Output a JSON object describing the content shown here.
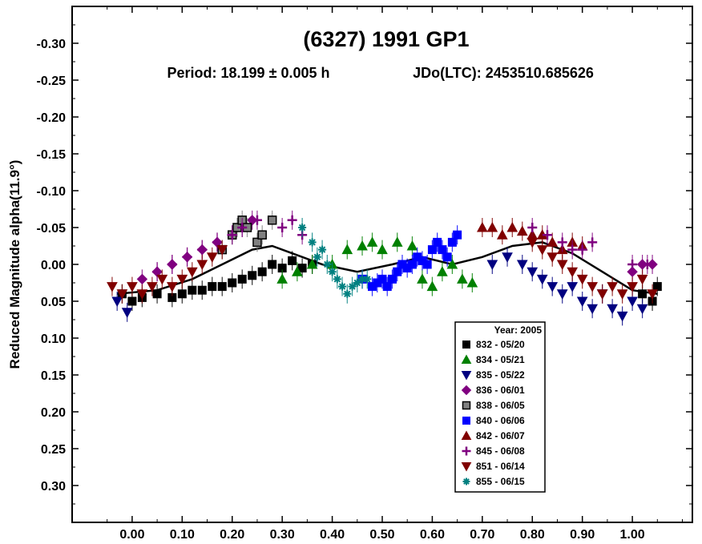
{
  "chart_data": {
    "type": "scatter",
    "title": "(6327) 1991 GP1",
    "subtitle_period": "Period: 18.199 ± 0.005 h",
    "subtitle_epoch": "JDo(LTC): 2453510.685626",
    "xlabel": "",
    "ylabel": "Reduced Magnitude alpha(11.9°)",
    "xlim": [
      -0.12,
      1.12
    ],
    "ylim": [
      0.35,
      -0.35
    ],
    "y_inverted": true,
    "grid": false,
    "x_ticks": [
      "0.00",
      "0.10",
      "0.20",
      "0.30",
      "0.40",
      "0.50",
      "0.60",
      "0.70",
      "0.80",
      "0.90",
      "1.00"
    ],
    "x_tick_values": [
      0,
      0.1,
      0.2,
      0.3,
      0.4,
      0.5,
      0.6,
      0.7,
      0.8,
      0.9,
      1.0
    ],
    "y_ticks": [
      "-0.30",
      "-0.25",
      "-0.20",
      "-0.15",
      "-0.10",
      "-0.05",
      "0.00",
      "0.05",
      "0.10",
      "0.15",
      "0.20",
      "0.25",
      "0.30"
    ],
    "y_tick_values": [
      -0.3,
      -0.25,
      -0.2,
      -0.15,
      -0.1,
      -0.05,
      0.0,
      0.05,
      0.1,
      0.15,
      0.2,
      0.25,
      0.3
    ],
    "legend": {
      "title": "Year: 2005",
      "position": "bottom-center"
    },
    "fit_curve": {
      "x": [
        -0.03,
        0.05,
        0.12,
        0.18,
        0.24,
        0.28,
        0.32,
        0.38,
        0.45,
        0.52,
        0.58,
        0.64,
        0.7,
        0.76,
        0.82,
        0.88,
        0.94,
        1.0,
        1.05
      ],
      "y": [
        0.04,
        0.035,
        0.02,
        0.0,
        -0.02,
        -0.025,
        -0.015,
        0.0,
        0.01,
        0.0,
        -0.01,
        0.0,
        -0.01,
        -0.025,
        -0.03,
        -0.015,
        0.01,
        0.035,
        0.04
      ]
    },
    "series": [
      {
        "name": "832 - 05/20",
        "marker": "square",
        "color": "#000000",
        "x": [
          -0.02,
          0.0,
          0.02,
          0.05,
          0.08,
          0.1,
          0.12,
          0.14,
          0.16,
          0.18,
          0.2,
          0.22,
          0.24,
          0.26,
          0.28,
          0.3,
          0.32,
          0.34,
          0.36,
          1.02,
          1.04,
          1.05
        ],
        "y": [
          0.04,
          0.05,
          0.045,
          0.04,
          0.045,
          0.04,
          0.035,
          0.035,
          0.03,
          0.03,
          0.025,
          0.02,
          0.015,
          0.01,
          0.0,
          0.005,
          -0.005,
          0.005,
          0.0,
          0.04,
          0.05,
          0.03
        ]
      },
      {
        "name": "834 - 05/21",
        "marker": "triangle-up",
        "color": "#008000",
        "x": [
          0.3,
          0.33,
          0.36,
          0.4,
          0.43,
          0.46,
          0.48,
          0.5,
          0.53,
          0.56,
          0.58,
          0.6,
          0.62,
          0.64,
          0.66,
          0.68
        ],
        "y": [
          0.02,
          0.01,
          0.0,
          0.0,
          -0.02,
          -0.025,
          -0.03,
          -0.02,
          -0.03,
          -0.025,
          0.02,
          0.03,
          0.01,
          0.0,
          0.02,
          0.025
        ]
      },
      {
        "name": "835 - 05/22",
        "marker": "triangle-down",
        "color": "#000080",
        "x": [
          -0.03,
          -0.01,
          0.72,
          0.75,
          0.78,
          0.8,
          0.82,
          0.84,
          0.86,
          0.88,
          0.9,
          0.92,
          0.94,
          0.96,
          0.98,
          1.0,
          1.02
        ],
        "y": [
          0.05,
          0.065,
          0.0,
          -0.01,
          0.0,
          0.01,
          0.02,
          0.03,
          0.04,
          0.03,
          0.05,
          0.06,
          0.04,
          0.06,
          0.07,
          0.05,
          0.06
        ]
      },
      {
        "name": "836 - 06/01",
        "marker": "diamond",
        "color": "#800080",
        "x": [
          0.02,
          0.05,
          0.08,
          0.11,
          0.14,
          0.17,
          0.2,
          0.22,
          0.24,
          1.0,
          1.02,
          1.04
        ],
        "y": [
          0.02,
          0.01,
          0.0,
          -0.01,
          -0.02,
          -0.03,
          -0.04,
          -0.05,
          -0.06,
          0.01,
          0.0,
          0.0
        ]
      },
      {
        "name": "838 - 06/05",
        "marker": "square-gray",
        "color": "#808080",
        "x": [
          0.18,
          0.2,
          0.21,
          0.22,
          0.23,
          0.25,
          0.26,
          0.28
        ],
        "y": [
          -0.02,
          -0.04,
          -0.05,
          -0.06,
          -0.05,
          -0.03,
          -0.04,
          -0.06
        ]
      },
      {
        "name": "840 - 06/06",
        "marker": "square",
        "color": "#0000ff",
        "x": [
          0.46,
          0.48,
          0.49,
          0.5,
          0.51,
          0.52,
          0.53,
          0.54,
          0.55,
          0.56,
          0.57,
          0.58,
          0.59,
          0.6,
          0.61,
          0.62,
          0.63,
          0.64,
          0.65
        ],
        "y": [
          0.02,
          0.03,
          0.025,
          0.02,
          0.03,
          0.02,
          0.01,
          0.0,
          0.005,
          0.0,
          -0.01,
          -0.005,
          0.0,
          -0.02,
          -0.03,
          -0.02,
          -0.01,
          -0.03,
          -0.04
        ]
      },
      {
        "name": "842 - 06/07",
        "marker": "triangle-up",
        "color": "#800000",
        "x": [
          0.7,
          0.72,
          0.74,
          0.76,
          0.78,
          0.8,
          0.82,
          0.84,
          0.86,
          0.88,
          0.9
        ],
        "y": [
          -0.05,
          -0.05,
          -0.04,
          -0.05,
          -0.045,
          -0.04,
          -0.04,
          -0.03,
          -0.02,
          -0.03,
          -0.025
        ]
      },
      {
        "name": "845 - 06/08",
        "marker": "plus",
        "color": "#800080",
        "x": [
          0.05,
          0.08,
          0.11,
          0.14,
          0.17,
          0.2,
          0.22,
          0.25,
          0.3,
          0.32,
          0.34,
          0.8,
          0.83,
          0.86,
          0.88,
          0.9,
          0.92,
          1.0,
          1.03
        ],
        "y": [
          0.01,
          0.0,
          -0.01,
          -0.02,
          -0.03,
          -0.04,
          -0.05,
          -0.06,
          -0.05,
          -0.06,
          -0.04,
          -0.05,
          -0.04,
          -0.03,
          -0.02,
          -0.02,
          -0.03,
          0.0,
          0.0
        ]
      },
      {
        "name": "851 - 06/14",
        "marker": "triangle-down",
        "color": "#800000",
        "x": [
          -0.04,
          -0.02,
          0.0,
          0.02,
          0.04,
          0.06,
          0.08,
          0.1,
          0.12,
          0.14,
          0.16,
          0.18,
          0.8,
          0.82,
          0.84,
          0.86,
          0.88,
          0.9,
          0.92,
          0.94,
          0.96,
          0.98,
          1.0,
          1.02,
          1.04
        ],
        "y": [
          0.03,
          0.04,
          0.03,
          0.04,
          0.03,
          0.02,
          0.03,
          0.02,
          0.01,
          0.0,
          -0.01,
          -0.02,
          -0.03,
          -0.02,
          -0.01,
          0.0,
          0.01,
          0.02,
          0.03,
          0.04,
          0.03,
          0.04,
          0.03,
          0.02,
          0.04
        ]
      },
      {
        "name": "855 - 06/15",
        "marker": "asterisk",
        "color": "#008080",
        "x": [
          0.34,
          0.36,
          0.37,
          0.38,
          0.39,
          0.4,
          0.41,
          0.42,
          0.43,
          0.44,
          0.45,
          0.46,
          0.47
        ],
        "y": [
          -0.05,
          -0.03,
          -0.01,
          -0.02,
          0.0,
          0.01,
          0.02,
          0.03,
          0.04,
          0.03,
          0.025,
          0.02,
          0.02
        ]
      }
    ]
  }
}
